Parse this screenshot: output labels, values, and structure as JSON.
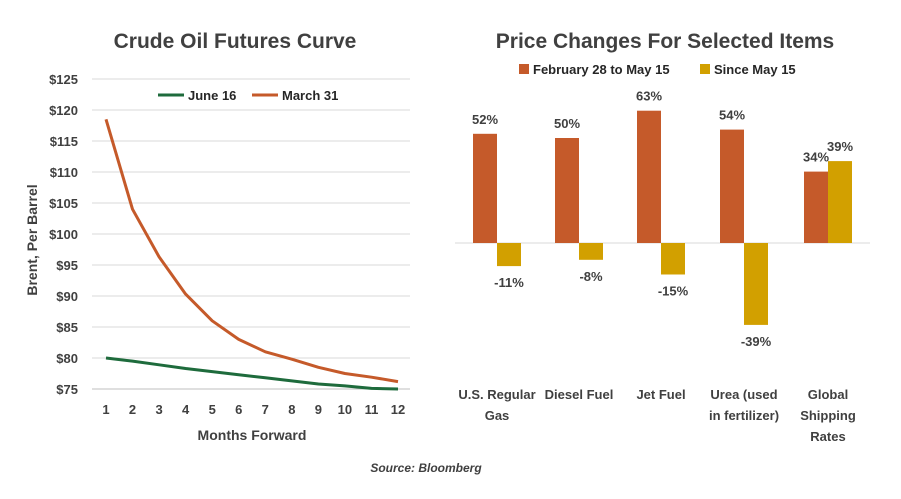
{
  "chart_data": [
    {
      "type": "line",
      "title": "Crude Oil Futures Curve",
      "xlabel": "Months Forward",
      "ylabel": "Brent, Per Barrel",
      "x": [
        1,
        2,
        3,
        4,
        5,
        6,
        7,
        8,
        9,
        10,
        11,
        12
      ],
      "ylim": [
        75,
        125
      ],
      "y_ticks": [
        "$75",
        "$80",
        "$85",
        "$90",
        "$95",
        "$100",
        "$105",
        "$110",
        "$115",
        "$120",
        "$125"
      ],
      "grid": true,
      "legend_position": "top",
      "series": [
        {
          "name": "June 16",
          "color": "#1e6b3c",
          "values": [
            80.0,
            79.5,
            78.9,
            78.3,
            77.8,
            77.3,
            76.8,
            76.3,
            75.8,
            75.5,
            75.1,
            75.0
          ]
        },
        {
          "name": "March 31",
          "color": "#c55a2a",
          "values": [
            118.5,
            104.0,
            96.3,
            90.3,
            86.0,
            83.0,
            81.0,
            79.8,
            78.5,
            77.5,
            76.9,
            76.2
          ]
        }
      ]
    },
    {
      "type": "bar",
      "title": "Price Changes For Selected Items",
      "categories": [
        [
          "U.S. Regular",
          "Gas"
        ],
        [
          "Diesel Fuel"
        ],
        [
          "Jet Fuel"
        ],
        [
          "Urea (used",
          "in fertilizer)"
        ],
        [
          "Global",
          "Shipping",
          "Rates"
        ]
      ],
      "legend_position": "top",
      "series": [
        {
          "name": "February 28 to May 15",
          "color": "#c55a2a",
          "values": [
            52,
            50,
            63,
            54,
            34
          ],
          "labels": [
            "52%",
            "50%",
            "63%",
            "54%",
            "34%"
          ]
        },
        {
          "name": "Since May 15",
          "color": "#d2a000",
          "values": [
            -11,
            -8,
            -15,
            -39,
            39
          ],
          "labels": [
            "-11%",
            "-8%",
            "-15%",
            "-39%",
            "39%"
          ]
        }
      ]
    }
  ],
  "source": "Source: Bloomberg"
}
